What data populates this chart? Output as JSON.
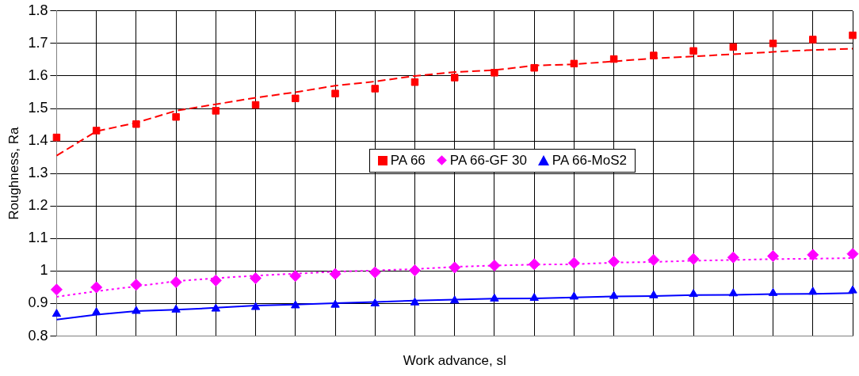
{
  "chart_data": {
    "type": "scatter",
    "xlabel": "Work advance, sl",
    "ylabel": "Roughness, Ra",
    "categories": [
      null,
      null,
      null,
      null,
      null,
      null,
      null,
      null,
      null,
      null,
      null,
      null,
      null,
      null,
      null,
      null,
      null,
      null,
      null,
      null,
      null
    ],
    "series": [
      {
        "name": "PA 66",
        "marker": "square",
        "color": "#ff0000",
        "values": [
          1.411,
          1.432,
          1.452,
          1.474,
          1.493,
          1.511,
          1.531,
          1.546,
          1.561,
          1.581,
          1.595,
          1.61,
          1.625,
          1.638,
          1.652,
          1.663,
          1.677,
          1.689,
          1.7,
          1.712,
          1.725
        ]
      },
      {
        "name": "PA 66-GF 30",
        "marker": "diamond",
        "color": "#ff00ff",
        "values": [
          0.943,
          0.95,
          0.958,
          0.966,
          0.971,
          0.978,
          0.985,
          0.991,
          0.996,
          1.002,
          1.011,
          1.017,
          1.021,
          1.025,
          1.029,
          1.034,
          1.037,
          1.042,
          1.046,
          1.05,
          1.053
        ]
      },
      {
        "name": "PA 66-MoS2",
        "marker": "triangle",
        "color": "#0000ff",
        "values": [
          0.868,
          0.873,
          0.877,
          0.881,
          0.884,
          0.889,
          0.894,
          0.896,
          0.9,
          0.903,
          0.909,
          0.915,
          0.917,
          0.921,
          0.923,
          0.925,
          0.929,
          0.931,
          0.932,
          0.936,
          0.94
        ]
      },
      {
        "type": "line",
        "marker": "none",
        "line_style": "dashed",
        "color": "#ff0000",
        "values": [
          1.355,
          1.43,
          1.456,
          1.493,
          1.513,
          1.533,
          1.55,
          1.57,
          1.583,
          1.6,
          1.612,
          1.618,
          1.632,
          1.636,
          1.645,
          1.654,
          1.66,
          1.667,
          1.674,
          1.68,
          1.684
        ]
      },
      {
        "type": "line",
        "marker": "none",
        "line_style": "dotted",
        "color": "#ff00ff",
        "values": [
          0.921,
          0.938,
          0.953,
          0.969,
          0.978,
          0.986,
          0.992,
          0.998,
          1.002,
          1.006,
          1.013,
          1.017,
          1.02,
          1.021,
          1.026,
          1.028,
          1.032,
          1.034,
          1.037,
          1.038,
          1.04
        ]
      },
      {
        "type": "line",
        "marker": "none",
        "line_style": "solid",
        "color": "#0000ff",
        "values": [
          0.851,
          0.866,
          0.877,
          0.881,
          0.887,
          0.894,
          0.897,
          0.901,
          0.905,
          0.909,
          0.912,
          0.915,
          0.916,
          0.919,
          0.922,
          0.923,
          0.926,
          0.927,
          0.929,
          0.93,
          0.932
        ]
      }
    ],
    "ylim": [
      0.8,
      1.8
    ],
    "yticks": [
      0.8,
      0.9,
      {
        "value": 1,
        "label": "1"
      },
      1.1,
      1.2,
      1.3,
      1.4,
      1.5,
      1.6,
      1.7,
      1.8
    ],
    "grid": true,
    "legend": "center",
    "tick_labels": "y"
  }
}
